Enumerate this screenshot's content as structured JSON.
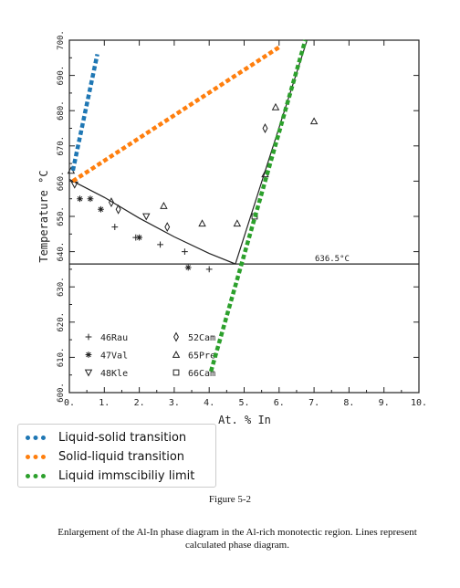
{
  "chart_data": {
    "type": "scatter",
    "title": "",
    "xlabel": "At. % In",
    "ylabel": "Temperature °C",
    "xlim": [
      0,
      10
    ],
    "ylim": [
      600,
      700
    ],
    "x_ticks": [
      0,
      1,
      2,
      3,
      4,
      5,
      6,
      7,
      8,
      9,
      10
    ],
    "x_tick_labels": [
      "0.",
      "1.",
      "2.",
      "3.",
      "4.",
      "5.",
      "6.",
      "7.",
      "8.",
      "9.",
      "10."
    ],
    "y_ticks": [
      600,
      610,
      620,
      630,
      640,
      650,
      660,
      670,
      680,
      690,
      700
    ],
    "y_tick_labels": [
      "600.",
      "610.",
      "620.",
      "630.",
      "640.",
      "650.",
      "660.",
      "670.",
      "680.",
      "690.",
      "700."
    ],
    "monotectic_temperature": 636.5,
    "monotectic_label": "636.5°C",
    "calculated_lines": [
      {
        "role": "liquidus",
        "points": [
          [
            0,
            660.5
          ],
          [
            1.0,
            655.4
          ],
          [
            2.0,
            649.5
          ],
          [
            3.0,
            644.2
          ],
          [
            4.0,
            639.5
          ],
          [
            4.75,
            636.5
          ]
        ]
      },
      {
        "role": "miscibility",
        "points": [
          [
            4.75,
            636.5
          ],
          [
            6.8,
            700
          ]
        ]
      },
      {
        "role": "monotectic",
        "points": [
          [
            0,
            636.5
          ],
          [
            10,
            636.5
          ]
        ]
      }
    ],
    "series": [
      {
        "name": "46Rau",
        "marker": "plus",
        "points": [
          [
            1.3,
            647
          ],
          [
            1.9,
            644
          ],
          [
            2.6,
            642
          ],
          [
            3.3,
            640
          ],
          [
            4.0,
            635
          ]
        ]
      },
      {
        "name": "47Val",
        "marker": "asterisk",
        "points": [
          [
            0.3,
            655
          ],
          [
            0.6,
            655
          ],
          [
            0.9,
            652
          ],
          [
            2.0,
            644
          ],
          [
            3.4,
            635.5
          ]
        ]
      },
      {
        "name": "48Kle",
        "marker": "triangle-down",
        "points": [
          [
            0.15,
            659
          ],
          [
            2.2,
            650
          ]
        ]
      },
      {
        "name": "52Cam",
        "marker": "diamond",
        "points": [
          [
            1.2,
            654
          ],
          [
            1.4,
            652
          ],
          [
            2.8,
            647
          ],
          [
            5.6,
            675
          ]
        ]
      },
      {
        "name": "65Pre",
        "marker": "triangle-up",
        "points": [
          [
            0.05,
            663
          ],
          [
            2.7,
            653
          ],
          [
            3.8,
            648
          ],
          [
            4.8,
            648
          ],
          [
            5.6,
            662
          ],
          [
            5.9,
            681
          ],
          [
            7.0,
            677
          ]
        ]
      },
      {
        "name": "66Cam",
        "marker": "square",
        "points": [
          [
            5.3,
            650
          ]
        ]
      }
    ],
    "overlay_lines": [
      {
        "name": "Liquid-solid transition",
        "color": "#1f77b4",
        "points": [
          [
            0.1,
            663
          ],
          [
            0.8,
            696
          ]
        ]
      },
      {
        "name": "Solid-liquid transition",
        "color": "#ff7f0e",
        "points": [
          [
            0.1,
            660
          ],
          [
            6.0,
            698
          ]
        ]
      },
      {
        "name": "Liquid immscibiliy limit",
        "color": "#2ca02c",
        "points": [
          [
            4.05,
            606
          ],
          [
            6.75,
            700
          ]
        ]
      }
    ],
    "legend": {
      "placement": "bottom-left"
    }
  },
  "caption": {
    "figure_label": "Figure 5-2",
    "text": "Enlargement of the Al-In phase diagram in the Al-rich monotectic region. Lines represent calculated phase diagram."
  }
}
